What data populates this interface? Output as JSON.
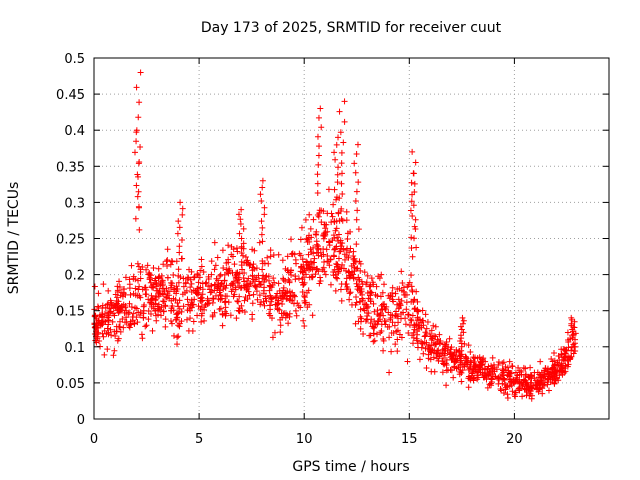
{
  "chart_data": {
    "type": "scatter",
    "title": "Day 173 of 2025, SRMTID for receiver cuut",
    "xlabel": "GPS time / hours",
    "ylabel": "SRMTID / TECUs",
    "xlim": [
      0,
      24.5
    ],
    "ylim": [
      0,
      0.5
    ],
    "x_ticks": [
      0,
      5,
      10,
      15,
      20
    ],
    "y_ticks": [
      0,
      0.05,
      0.1,
      0.15,
      0.2,
      0.25,
      0.3,
      0.35,
      0.4,
      0.45,
      0.5
    ],
    "x_tick_labels": [
      "0",
      "5",
      "10",
      "15",
      "20"
    ],
    "y_tick_labels": [
      "0",
      "0.05",
      "0.1",
      "0.15",
      "0.2",
      "0.25",
      "0.3",
      "0.35",
      "0.4",
      "0.45",
      "0.5"
    ],
    "grid": true,
    "marker": "+",
    "color": "#ff0000",
    "trend": [
      {
        "x": 0,
        "y": 0.13,
        "spread": 0.035
      },
      {
        "x": 1,
        "y": 0.14,
        "spread": 0.04
      },
      {
        "x": 2,
        "y": 0.17,
        "spread": 0.05
      },
      {
        "x": 3,
        "y": 0.17,
        "spread": 0.045
      },
      {
        "x": 4,
        "y": 0.17,
        "spread": 0.05
      },
      {
        "x": 5,
        "y": 0.17,
        "spread": 0.045
      },
      {
        "x": 6,
        "y": 0.18,
        "spread": 0.045
      },
      {
        "x": 7,
        "y": 0.19,
        "spread": 0.05
      },
      {
        "x": 8,
        "y": 0.19,
        "spread": 0.055
      },
      {
        "x": 9,
        "y": 0.17,
        "spread": 0.05
      },
      {
        "x": 10,
        "y": 0.2,
        "spread": 0.06
      },
      {
        "x": 11,
        "y": 0.25,
        "spread": 0.06
      },
      {
        "x": 12,
        "y": 0.22,
        "spread": 0.06
      },
      {
        "x": 13,
        "y": 0.15,
        "spread": 0.05
      },
      {
        "x": 14,
        "y": 0.14,
        "spread": 0.05
      },
      {
        "x": 15,
        "y": 0.16,
        "spread": 0.05
      },
      {
        "x": 16,
        "y": 0.1,
        "spread": 0.03
      },
      {
        "x": 17,
        "y": 0.085,
        "spread": 0.025
      },
      {
        "x": 18,
        "y": 0.075,
        "spread": 0.022
      },
      {
        "x": 19,
        "y": 0.065,
        "spread": 0.022
      },
      {
        "x": 20,
        "y": 0.05,
        "spread": 0.02
      },
      {
        "x": 21,
        "y": 0.05,
        "spread": 0.02
      },
      {
        "x": 22,
        "y": 0.07,
        "spread": 0.022
      },
      {
        "x": 22.8,
        "y": 0.1,
        "spread": 0.022
      }
    ],
    "peaks": [
      {
        "x": 2.1,
        "y": 0.48
      },
      {
        "x": 2.05,
        "y": 0.4
      },
      {
        "x": 4.1,
        "y": 0.3
      },
      {
        "x": 7.0,
        "y": 0.29
      },
      {
        "x": 8.0,
        "y": 0.33
      },
      {
        "x": 10.7,
        "y": 0.43
      },
      {
        "x": 11.8,
        "y": 0.44
      },
      {
        "x": 11.5,
        "y": 0.39
      },
      {
        "x": 12.5,
        "y": 0.38
      },
      {
        "x": 15.2,
        "y": 0.37
      },
      {
        "x": 15.2,
        "y": 0.34
      },
      {
        "x": 17.5,
        "y": 0.14
      },
      {
        "x": 22.8,
        "y": 0.14
      }
    ],
    "range": {
      "x_start": 0,
      "x_end": 22.9
    }
  }
}
